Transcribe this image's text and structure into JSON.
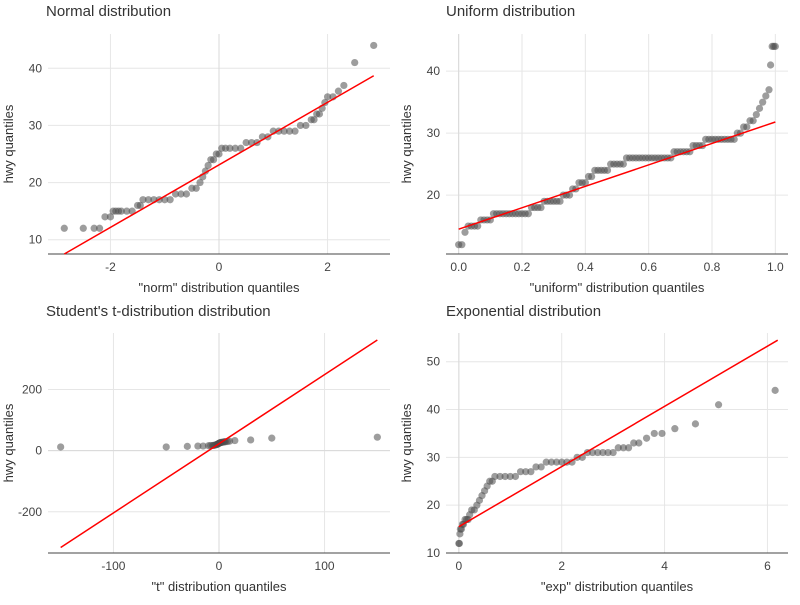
{
  "chart_data": [
    {
      "type": "scatter",
      "title": "Normal distribution",
      "xlabel": "\"norm\" distribution quantiles",
      "ylabel": "hwy quantiles",
      "xlim": [
        -3.15,
        3.15
      ],
      "ylim": [
        7.5,
        46
      ],
      "xticks": [
        -2,
        0,
        2
      ],
      "xtick_labels": [
        "-2",
        "0",
        "2"
      ],
      "yticks": [
        10,
        20,
        30,
        40
      ],
      "ytick_labels": [
        "10",
        "20",
        "30",
        "40"
      ],
      "zero_line": "x",
      "grid": true,
      "colors": {
        "points": "#4d4d4d",
        "reference_line": "#ff0000"
      },
      "reference_line": {
        "x": [
          -2.85,
          2.85
        ],
        "y": [
          7.5,
          38.7
        ]
      },
      "points": {
        "x": [
          -2.85,
          -2.5,
          -2.3,
          -2.2,
          -2.1,
          -2.0,
          -1.95,
          -1.9,
          -1.85,
          -1.8,
          -1.7,
          -1.6,
          -1.5,
          -1.45,
          -1.4,
          -1.3,
          -1.2,
          -1.1,
          -1.0,
          -0.9,
          -0.8,
          -0.7,
          -0.6,
          -0.5,
          -0.42,
          -0.35,
          -0.3,
          -0.25,
          -0.2,
          -0.15,
          -0.1,
          -0.05,
          0.0,
          0.05,
          0.12,
          0.2,
          0.3,
          0.4,
          0.5,
          0.6,
          0.7,
          0.8,
          0.9,
          1.0,
          1.1,
          1.2,
          1.3,
          1.4,
          1.5,
          1.6,
          1.7,
          1.75,
          1.8,
          1.85,
          1.9,
          1.95,
          2.0,
          2.1,
          2.2,
          2.3,
          2.5,
          2.85
        ],
        "y": [
          12,
          12,
          12,
          12,
          14,
          14,
          15,
          15,
          15,
          15,
          15,
          15,
          16,
          16,
          17,
          17,
          17,
          17,
          17,
          17,
          18,
          18,
          18,
          19,
          19,
          20,
          21,
          22,
          23,
          24,
          24,
          25,
          25,
          26,
          26,
          26,
          26,
          26,
          27,
          27,
          27,
          28,
          28,
          29,
          29,
          29,
          29,
          29,
          30,
          30,
          31,
          31,
          32,
          32,
          33,
          34,
          35,
          35,
          36,
          37,
          41,
          44
        ]
      }
    },
    {
      "type": "scatter",
      "title": "Uniform distribution",
      "xlabel": "\"uniform\" distribution quantiles",
      "ylabel": "hwy quantiles",
      "xlim": [
        -0.04,
        1.04
      ],
      "ylim": [
        10.5,
        46
      ],
      "xticks": [
        0,
        0.2,
        0.4,
        0.6,
        0.8,
        1
      ],
      "xtick_labels": [
        "0.0",
        "0.2",
        "0.4",
        "0.6",
        "0.8",
        "1.0"
      ],
      "yticks": [
        20,
        30,
        40
      ],
      "ytick_labels": [
        "20",
        "30",
        "40"
      ],
      "zero_line": "x",
      "grid": true,
      "colors": {
        "points": "#4d4d4d",
        "reference_line": "#ff0000"
      },
      "reference_line": {
        "x": [
          0.0,
          1.0
        ],
        "y": [
          14.5,
          31.8
        ]
      },
      "points": {
        "x": [
          0.0,
          0.01,
          0.02,
          0.03,
          0.04,
          0.05,
          0.06,
          0.07,
          0.08,
          0.09,
          0.1,
          0.11,
          0.12,
          0.13,
          0.14,
          0.15,
          0.16,
          0.17,
          0.18,
          0.19,
          0.2,
          0.21,
          0.22,
          0.23,
          0.24,
          0.25,
          0.26,
          0.27,
          0.28,
          0.29,
          0.3,
          0.31,
          0.32,
          0.33,
          0.34,
          0.35,
          0.36,
          0.37,
          0.38,
          0.39,
          0.4,
          0.41,
          0.42,
          0.43,
          0.44,
          0.45,
          0.46,
          0.47,
          0.48,
          0.49,
          0.5,
          0.51,
          0.52,
          0.53,
          0.54,
          0.55,
          0.56,
          0.57,
          0.58,
          0.59,
          0.6,
          0.61,
          0.62,
          0.63,
          0.64,
          0.65,
          0.66,
          0.67,
          0.68,
          0.69,
          0.7,
          0.71,
          0.72,
          0.73,
          0.74,
          0.75,
          0.76,
          0.77,
          0.78,
          0.79,
          0.8,
          0.81,
          0.82,
          0.83,
          0.84,
          0.85,
          0.86,
          0.87,
          0.88,
          0.89,
          0.9,
          0.91,
          0.92,
          0.93,
          0.94,
          0.95,
          0.96,
          0.97,
          0.98,
          0.985,
          0.99,
          0.995,
          1.0
        ],
        "y": [
          12,
          12,
          14,
          15,
          15,
          15,
          15,
          16,
          16,
          16,
          16,
          17,
          17,
          17,
          17,
          17,
          17,
          17,
          17,
          17,
          17,
          17,
          17,
          18,
          18,
          18,
          18,
          19,
          19,
          19,
          19,
          19,
          19,
          20,
          20,
          20,
          21,
          21,
          22,
          22,
          22,
          23,
          23,
          24,
          24,
          24,
          24,
          24,
          25,
          25,
          25,
          25,
          25,
          26,
          26,
          26,
          26,
          26,
          26,
          26,
          26,
          26,
          26,
          26,
          26,
          26,
          26,
          26,
          27,
          27,
          27,
          27,
          27,
          27,
          28,
          28,
          28,
          28,
          29,
          29,
          29,
          29,
          29,
          29,
          29,
          29,
          29,
          29,
          30,
          30,
          31,
          31,
          32,
          32,
          33,
          34,
          35,
          36,
          37,
          41,
          44,
          44,
          44
        ]
      }
    },
    {
      "type": "scatter",
      "title": "Student's t-distribution distribution",
      "xlabel": "\"t\" distribution quantiles",
      "ylabel": "hwy quantiles",
      "xlim": [
        -162,
        162
      ],
      "ylim": [
        -335,
        385
      ],
      "xticks": [
        -100,
        0,
        100
      ],
      "xtick_labels": [
        "-100",
        "0",
        "100"
      ],
      "yticks": [
        -200,
        0,
        200
      ],
      "ytick_labels": [
        "-200",
        "0",
        "200"
      ],
      "zero_line": "both",
      "grid": true,
      "colors": {
        "points": "#4d4d4d",
        "reference_line": "#ff0000"
      },
      "reference_line": {
        "x": [
          -150,
          150
        ],
        "y": [
          -317,
          362
        ]
      },
      "points": {
        "x": [
          -150,
          -50,
          -30,
          -20,
          -15,
          -10,
          -8,
          -6,
          -5,
          -4,
          -3,
          -2,
          -1.5,
          -1,
          -0.5,
          0,
          0.5,
          1,
          1.5,
          2,
          3,
          4,
          5,
          6,
          8,
          10,
          15,
          30,
          50,
          150
        ],
        "y": [
          12,
          12,
          14,
          15,
          15,
          16,
          17,
          17,
          17,
          18,
          19,
          20,
          21,
          22,
          23,
          24,
          25,
          26,
          26,
          27,
          27,
          28,
          29,
          29,
          30,
          31,
          33,
          35,
          41,
          44
        ]
      }
    },
    {
      "type": "scatter",
      "title": "Exponential distribution",
      "xlabel": "\"exp\" distribution quantiles",
      "ylabel": "hwy quantiles",
      "xlim": [
        -0.25,
        6.4
      ],
      "ylim": [
        10,
        56
      ],
      "xticks": [
        0,
        2,
        4,
        6
      ],
      "xtick_labels": [
        "0",
        "2",
        "4",
        "6"
      ],
      "yticks": [
        10,
        20,
        30,
        40,
        50
      ],
      "ytick_labels": [
        "10",
        "20",
        "30",
        "40",
        "50"
      ],
      "zero_line": "x",
      "grid": true,
      "colors": {
        "points": "#4d4d4d",
        "reference_line": "#ff0000"
      },
      "reference_line": {
        "x": [
          0.0,
          6.2
        ],
        "y": [
          15.5,
          54.5
        ]
      },
      "points": {
        "x": [
          0.0,
          0.01,
          0.02,
          0.03,
          0.05,
          0.07,
          0.09,
          0.12,
          0.15,
          0.18,
          0.21,
          0.25,
          0.3,
          0.35,
          0.4,
          0.45,
          0.5,
          0.55,
          0.6,
          0.65,
          0.7,
          0.8,
          0.9,
          1.0,
          1.1,
          1.2,
          1.3,
          1.4,
          1.5,
          1.6,
          1.7,
          1.8,
          1.9,
          2.0,
          2.1,
          2.2,
          2.3,
          2.4,
          2.5,
          2.6,
          2.7,
          2.8,
          2.9,
          3.0,
          3.1,
          3.2,
          3.3,
          3.4,
          3.5,
          3.65,
          3.8,
          3.95,
          4.2,
          4.6,
          5.05,
          6.15
        ],
        "y": [
          12,
          12,
          14,
          15,
          15,
          16,
          16,
          17,
          17,
          17,
          18,
          19,
          19,
          20,
          21,
          22,
          23,
          24,
          25,
          25,
          26,
          26,
          26,
          26,
          26,
          27,
          27,
          27,
          28,
          28,
          29,
          29,
          29,
          29,
          29,
          29,
          30,
          30,
          31,
          31,
          31,
          31,
          31,
          31,
          32,
          32,
          32,
          33,
          33,
          34,
          35,
          35,
          36,
          37,
          41,
          44
        ]
      }
    }
  ]
}
